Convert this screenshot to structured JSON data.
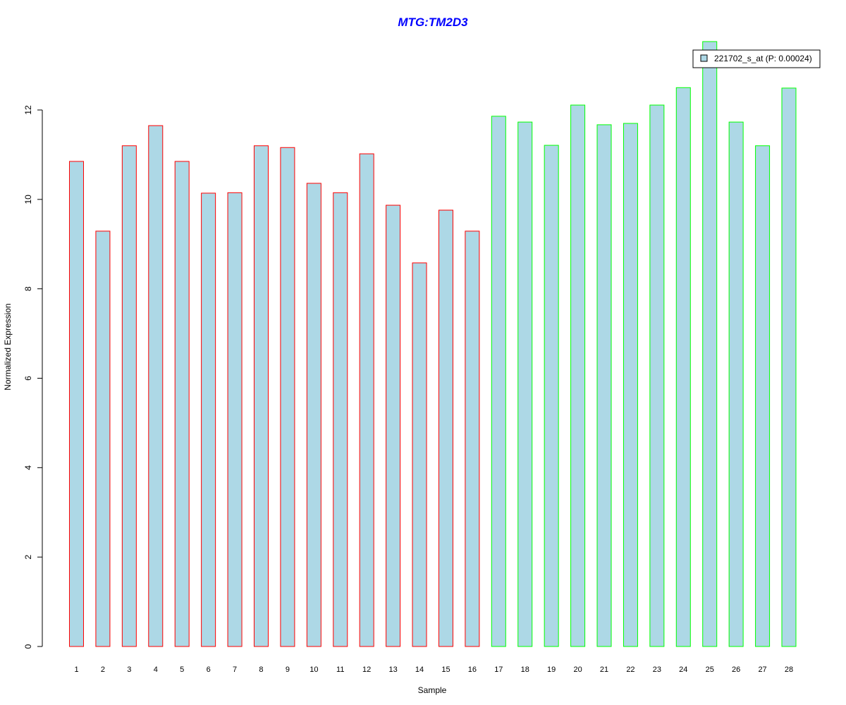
{
  "chart_data": {
    "type": "bar",
    "title": "MTG:TM2D3",
    "xlabel": "Sample",
    "ylabel": "Normalized Expression",
    "ylim": [
      0,
      13.6
    ],
    "yticks": [
      0,
      2,
      4,
      6,
      8,
      10,
      12
    ],
    "categories": [
      "1",
      "2",
      "3",
      "4",
      "5",
      "6",
      "7",
      "8",
      "9",
      "10",
      "11",
      "12",
      "13",
      "14",
      "15",
      "16",
      "17",
      "18",
      "19",
      "20",
      "21",
      "22",
      "23",
      "24",
      "25",
      "26",
      "27",
      "28"
    ],
    "values": [
      10.85,
      9.29,
      11.2,
      11.65,
      10.85,
      10.14,
      10.15,
      11.2,
      11.16,
      10.36,
      10.15,
      11.02,
      9.87,
      8.58,
      9.76,
      9.29,
      11.86,
      11.73,
      11.21,
      12.11,
      11.67,
      11.7,
      12.11,
      12.5,
      13.53,
      11.73,
      11.2,
      12.49
    ],
    "groups": [
      "red",
      "red",
      "red",
      "red",
      "red",
      "red",
      "red",
      "red",
      "red",
      "red",
      "red",
      "red",
      "red",
      "red",
      "red",
      "red",
      "green",
      "green",
      "green",
      "green",
      "green",
      "green",
      "green",
      "green",
      "green",
      "green",
      "green",
      "green"
    ],
    "legend": {
      "label": "221702_s_at (P: 0.00024)",
      "position": "top-right"
    },
    "colors": {
      "fill": "#add8e6",
      "red": "#ff0000",
      "green": "#00ff00",
      "title": "#0000ff"
    }
  }
}
